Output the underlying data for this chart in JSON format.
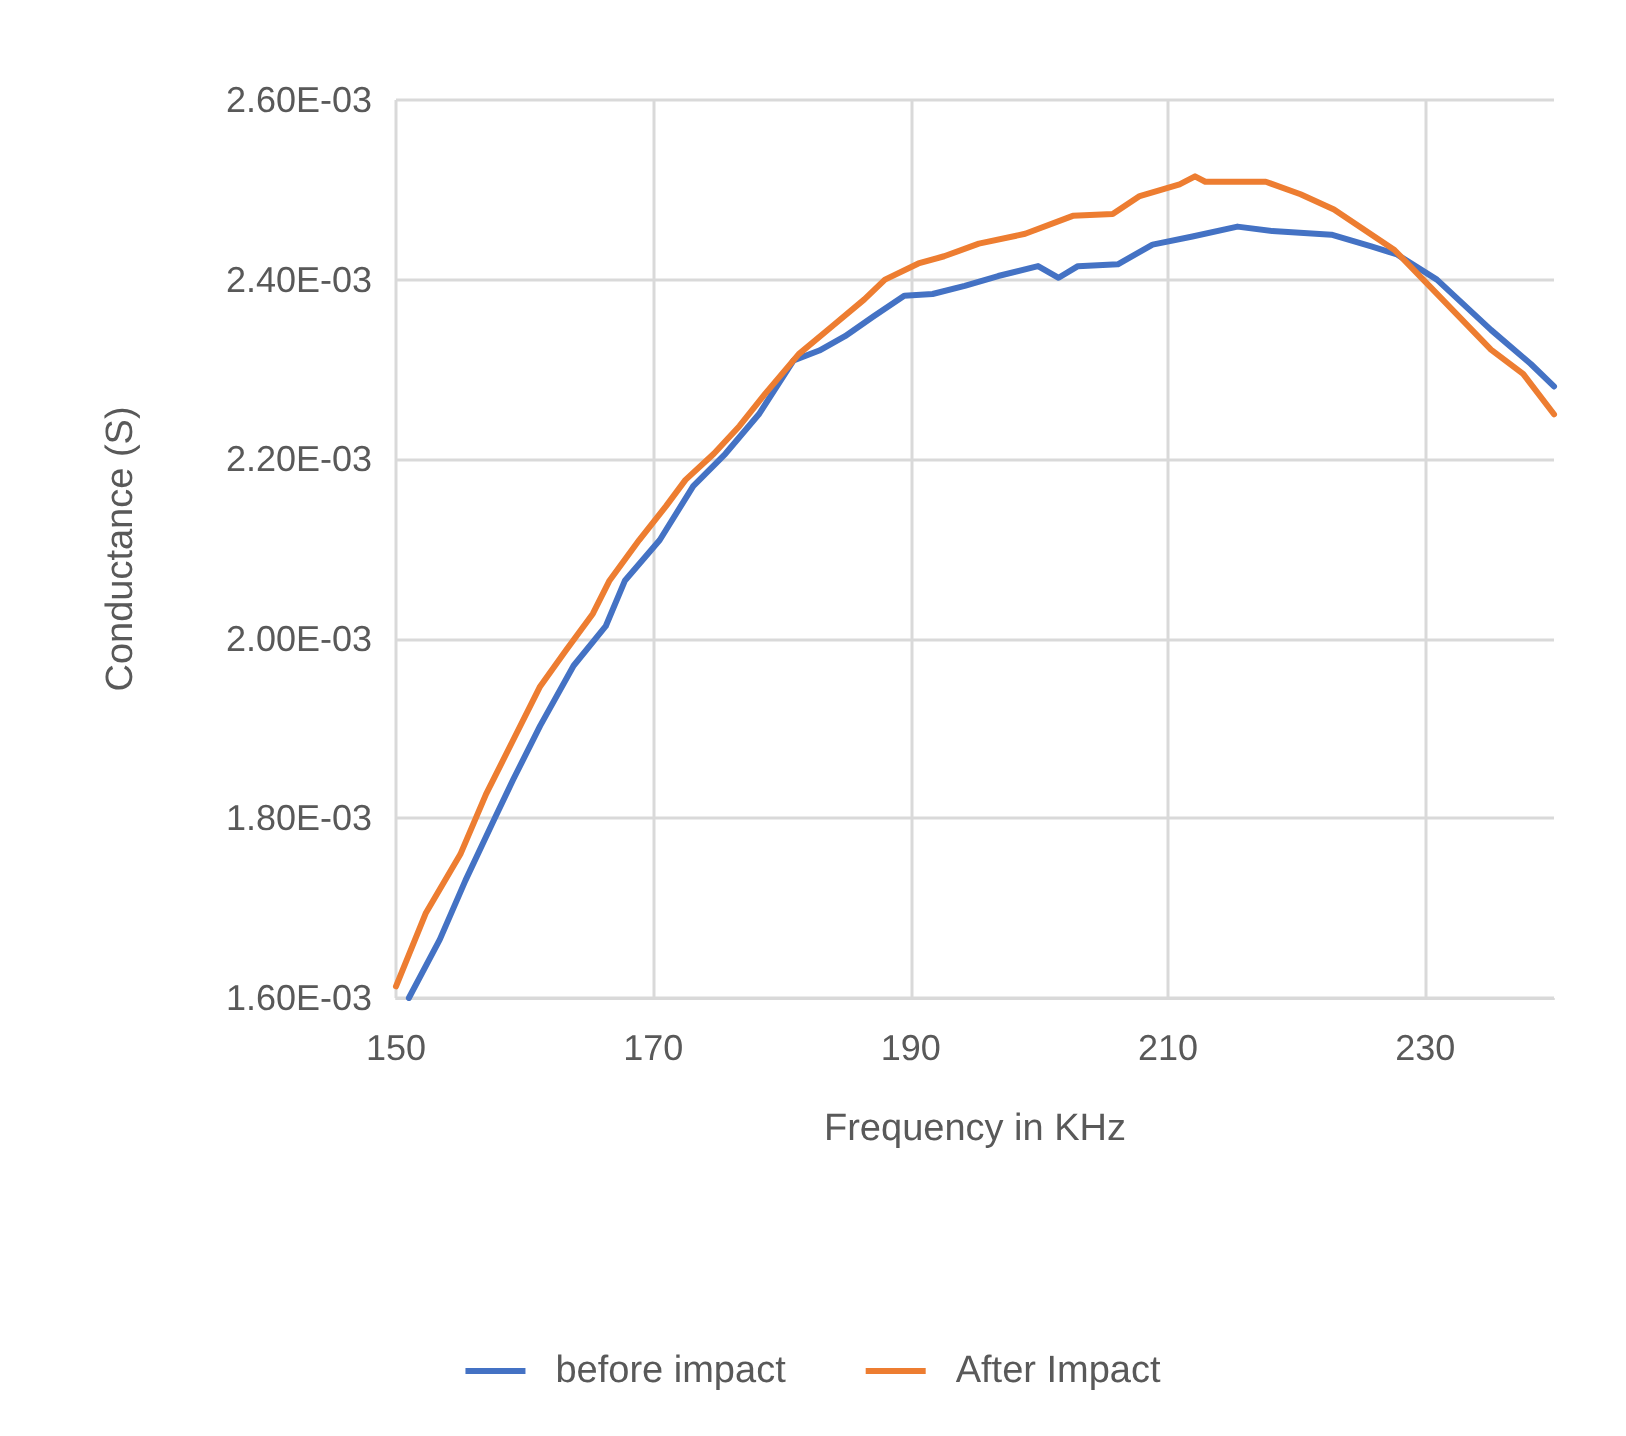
{
  "chart_data": {
    "type": "line",
    "xlabel": "Frequency in KHz",
    "ylabel": "Conductance (S)",
    "xlim": [
      150,
      240
    ],
    "xticks": [
      150,
      170,
      190,
      210,
      230
    ],
    "ylim": [
      0.0016,
      0.0026
    ],
    "yticks": [
      {
        "value": 0.0016,
        "label": "1.60E-03"
      },
      {
        "value": 0.0018,
        "label": "1.80E-03"
      },
      {
        "value": 0.002,
        "label": "2.00E-03"
      },
      {
        "value": 0.0022,
        "label": "2.20E-03"
      },
      {
        "value": 0.0024,
        "label": "2.40E-03"
      },
      {
        "value": 0.0026,
        "label": "2.60E-03"
      }
    ],
    "grid": true,
    "legend": "bottom",
    "marker": "none",
    "line_style": "solid",
    "series": [
      {
        "name": "before impact",
        "color": "#4472c4",
        "x": [
          151,
          153.4,
          155.4,
          157.6,
          159.1,
          161.2,
          163.8,
          166.3,
          167.8,
          170.5,
          173.1,
          175.6,
          178.2,
          180.9,
          182.9,
          184.9,
          187.1,
          189.5,
          191.7,
          194.2,
          196.8,
          199.9,
          201.5,
          203,
          206.1,
          208.8,
          211.9,
          215.4,
          218.1,
          222.7,
          225.8,
          227.8,
          230.9,
          235.1,
          238.2,
          240
        ],
        "values": [
          0.0016,
          0.001665,
          0.001731,
          0.001798,
          0.001843,
          0.001903,
          0.00197,
          0.002014,
          0.002065,
          0.00211,
          0.00217,
          0.002206,
          0.00225,
          0.00231,
          0.002321,
          0.002337,
          0.002359,
          0.002382,
          0.002384,
          0.002393,
          0.002404,
          0.002415,
          0.002402,
          0.002415,
          0.002417,
          0.002439,
          0.002448,
          0.002459,
          0.002454,
          0.00245,
          0.002437,
          0.002428,
          0.0024,
          0.002344,
          0.002306,
          0.002281
        ]
      },
      {
        "name": "After Impact",
        "color": "#ed7d31",
        "x": [
          150,
          152.3,
          155,
          157,
          159.1,
          161.2,
          163.2,
          165.3,
          166.6,
          168.9,
          171,
          172.5,
          174.7,
          176.7,
          178.7,
          181.3,
          183.9,
          186.4,
          188,
          190.6,
          192.6,
          195.3,
          198.9,
          202.6,
          205.7,
          207.8,
          210.9,
          212.1,
          212.9,
          217.6,
          220.3,
          222.9,
          227.6,
          230.1,
          235.1,
          237.6,
          240
        ],
        "values": [
          0.001613,
          0.001694,
          0.00176,
          0.001827,
          0.001887,
          0.001947,
          0.001987,
          0.002028,
          0.002065,
          0.00211,
          0.002148,
          0.002177,
          0.002206,
          0.002237,
          0.002273,
          0.002317,
          0.002348,
          0.002378,
          0.0024,
          0.002418,
          0.002426,
          0.00244,
          0.002451,
          0.002471,
          0.002473,
          0.002493,
          0.002506,
          0.002515,
          0.002509,
          0.002509,
          0.002495,
          0.002478,
          0.002433,
          0.002396,
          0.002322,
          0.002295,
          0.00225
        ]
      }
    ]
  }
}
